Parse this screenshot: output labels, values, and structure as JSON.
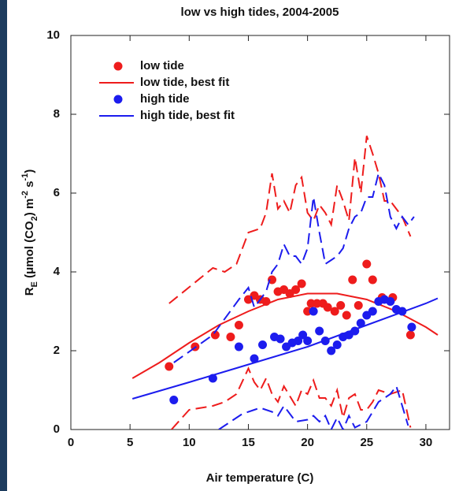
{
  "chart_data": {
    "type": "line",
    "title": "low vs high tides, 2004-2005",
    "xlabel": "Air temperature (C)",
    "ylabel": [
      {
        "text": "R",
        "shift": "none"
      },
      {
        "text": "E",
        "shift": "sub"
      },
      {
        "text": " (μmol (CO",
        "shift": "none"
      },
      {
        "text": "2",
        "shift": "sub"
      },
      {
        "text": ") m",
        "shift": "none"
      },
      {
        "text": "-2",
        "shift": "super"
      },
      {
        "text": " s",
        "shift": "none"
      },
      {
        "text": "-1",
        "shift": "super"
      },
      {
        "text": ")",
        "shift": "none"
      }
    ],
    "xlim": [
      0,
      32
    ],
    "ylim": [
      0,
      10
    ],
    "xticks": [
      0,
      5,
      10,
      15,
      20,
      25,
      30
    ],
    "yticks": [
      0,
      2,
      4,
      6,
      8,
      10
    ],
    "legend": "upper left",
    "series": [
      {
        "name": "low tide",
        "color": "#ee1c1c",
        "kind": "points",
        "x": [
          8.3,
          10.5,
          12.2,
          13.5,
          14.2,
          15,
          15.5,
          16,
          16.5,
          17,
          17.5,
          18,
          18.5,
          19,
          19.5,
          20,
          20.3,
          20.8,
          21.3,
          21.7,
          22.3,
          22.8,
          23.3,
          23.8,
          24.3,
          25,
          25.5,
          26.3,
          27.2,
          28.7
        ],
        "values": [
          1.6,
          2.1,
          2.4,
          2.35,
          2.65,
          3.3,
          3.4,
          3.3,
          3.25,
          3.8,
          3.5,
          3.55,
          3.45,
          3.55,
          3.7,
          3.0,
          3.2,
          3.2,
          3.2,
          3.1,
          3.0,
          3.15,
          2.9,
          3.8,
          3.15,
          4.2,
          3.8,
          3.35,
          3.35,
          2.4
        ]
      },
      {
        "name": "low tide, best fit",
        "color": "#ee1c1c",
        "kind": "line",
        "dash": false,
        "x": [
          5.2,
          7.5,
          10,
          12.5,
          15,
          17.5,
          20,
          22.5,
          25,
          27.5,
          30,
          31
        ],
        "values": [
          1.3,
          1.7,
          2.2,
          2.65,
          3.0,
          3.3,
          3.45,
          3.45,
          3.3,
          3.0,
          2.6,
          2.4
        ]
      },
      {
        "name": "high tide",
        "color": "#1c1cee",
        "kind": "points",
        "x": [
          8.7,
          12,
          14.2,
          15.5,
          16.2,
          17.2,
          17.7,
          18.2,
          18.7,
          19.2,
          19.6,
          20,
          20.5,
          21,
          21.5,
          22,
          22.5,
          23,
          23.5,
          24,
          24.5,
          25,
          25.5,
          26,
          26.5,
          27,
          27.5,
          28,
          28.8
        ],
        "values": [
          0.75,
          1.3,
          2.1,
          1.8,
          2.15,
          2.35,
          2.3,
          2.1,
          2.2,
          2.25,
          2.4,
          2.25,
          3.0,
          2.5,
          2.25,
          2.0,
          2.15,
          2.35,
          2.4,
          2.5,
          2.7,
          2.9,
          3.0,
          3.25,
          3.3,
          3.25,
          3.05,
          3.0,
          2.6
        ]
      },
      {
        "name": "high tide, best fit",
        "color": "#1c1cee",
        "kind": "line",
        "dash": false,
        "x": [
          5.2,
          10,
          15,
          20,
          25,
          30,
          31
        ],
        "values": [
          0.78,
          1.2,
          1.65,
          2.1,
          2.65,
          3.2,
          3.33
        ]
      },
      {
        "color": "#ee1c1c",
        "kind": "line",
        "dash": true,
        "x": [
          8.3,
          12,
          13,
          14,
          15,
          16,
          16.5,
          17,
          17.5,
          18,
          18.5,
          19,
          19.5,
          20,
          20.5,
          21,
          21.5,
          22,
          22.5,
          23,
          23.5,
          24,
          24.5,
          25,
          25.5,
          26,
          26.5,
          27,
          28,
          28.7
        ],
        "values": [
          3.2,
          4.1,
          4.0,
          4.2,
          5.0,
          5.1,
          5.5,
          6.5,
          5.6,
          5.8,
          5.5,
          6.2,
          6.4,
          5.5,
          5.3,
          5.7,
          5.5,
          5.2,
          6.2,
          5.8,
          5.3,
          6.9,
          6.0,
          7.45,
          7.0,
          6.5,
          5.8,
          5.8,
          5.4,
          4.9
        ]
      },
      {
        "color": "#ee1c1c",
        "kind": "line",
        "dash": true,
        "x": [
          8.5,
          10,
          12,
          13,
          14,
          15,
          15.5,
          16,
          16.5,
          17,
          17.5,
          18,
          19,
          19.5,
          20,
          20.5,
          21,
          21.5,
          22,
          22.5,
          23,
          23.5,
          24,
          24.5,
          25,
          25.5,
          26,
          27,
          28,
          28.7
        ],
        "values": [
          0,
          0.5,
          0.6,
          0.7,
          0.9,
          1.55,
          1.2,
          1.0,
          1.3,
          0.9,
          0.7,
          1.1,
          0.6,
          1.0,
          0.9,
          1.25,
          0.8,
          0.8,
          0.6,
          1.0,
          0.3,
          0.8,
          0.9,
          0.5,
          0.5,
          0.7,
          1.0,
          0.9,
          1.0,
          0.05
        ]
      },
      {
        "color": "#1c1cee",
        "kind": "line",
        "dash": true,
        "x": [
          8.7,
          12,
          14.2,
          15,
          15.5,
          16,
          16.5,
          17,
          17.5,
          18,
          18.5,
          19,
          19.5,
          20,
          20.5,
          21,
          21.5,
          22,
          22.5,
          23,
          23.5,
          24,
          24.5,
          25,
          25.5,
          26,
          26.5,
          27,
          27.5,
          28,
          28.5,
          29
        ],
        "values": [
          1.7,
          2.4,
          3.3,
          3.6,
          3.1,
          3.3,
          3.5,
          4.0,
          4.2,
          4.7,
          4.4,
          4.4,
          4.2,
          4.6,
          5.9,
          5.0,
          4.2,
          4.3,
          4.4,
          4.6,
          5.1,
          5.4,
          5.5,
          5.9,
          5.9,
          6.5,
          6.2,
          5.4,
          5.1,
          5.4,
          5.2,
          5.4
        ]
      },
      {
        "color": "#1c1cee",
        "kind": "line",
        "dash": true,
        "x": [
          12.5,
          14.5,
          15.5,
          16,
          17,
          17.5,
          18,
          19,
          20,
          20.5,
          21,
          21.5,
          22,
          22.5,
          23,
          23.5,
          24,
          25,
          26,
          27,
          27.5,
          28,
          28.5
        ],
        "values": [
          0,
          0.4,
          0.5,
          0.55,
          0.45,
          0.35,
          0.6,
          0.2,
          0.25,
          0.35,
          0.2,
          0.35,
          0,
          0.3,
          0,
          0.35,
          0.05,
          0.2,
          0.7,
          0.9,
          1.1,
          0.6,
          0.1
        ]
      }
    ]
  }
}
